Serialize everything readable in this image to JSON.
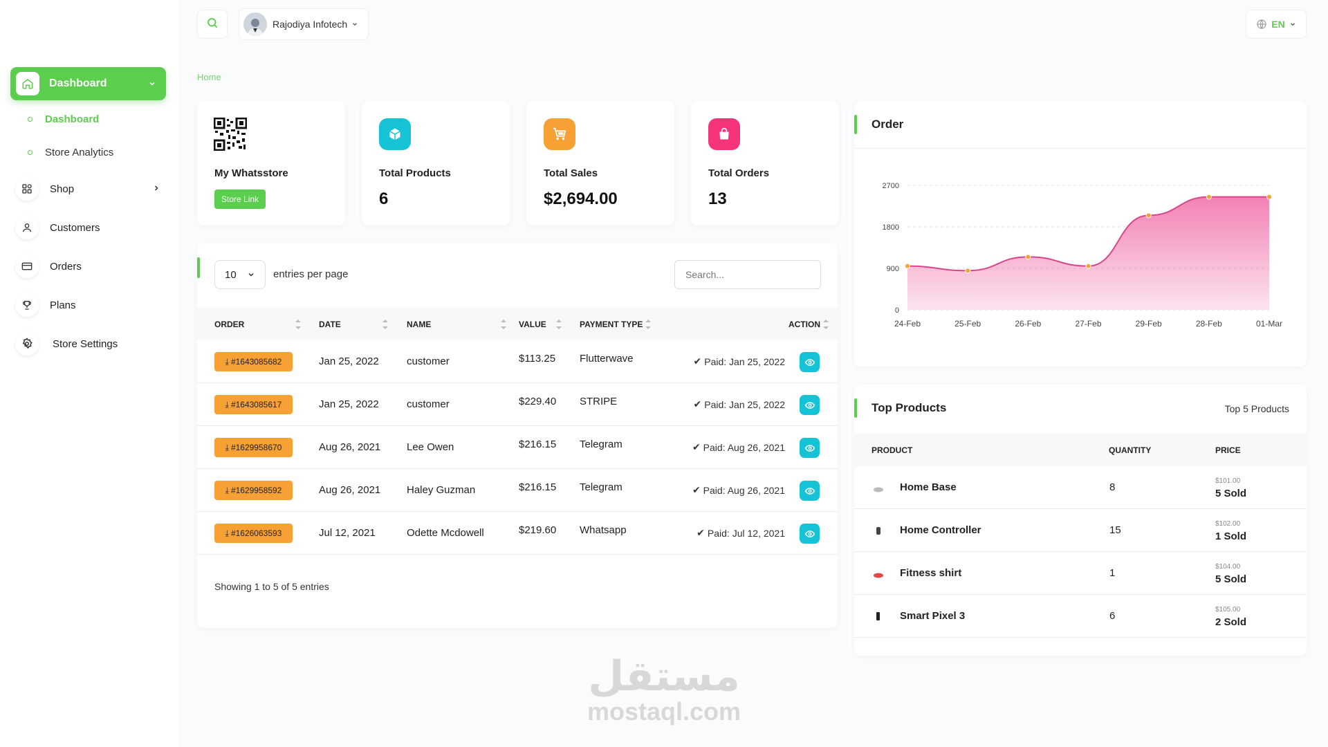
{
  "sidebar": {
    "active": {
      "label": "Dashboard",
      "icon": "home-icon"
    },
    "subitems": [
      {
        "label": "Dashboard",
        "active": true
      },
      {
        "label": "Store Analytics",
        "active": false
      }
    ],
    "items": [
      {
        "label": "Shop",
        "icon": "grid-icon"
      },
      {
        "label": "Customers",
        "icon": "user-icon"
      },
      {
        "label": "Orders",
        "icon": "card-icon"
      },
      {
        "label": "Plans",
        "icon": "trophy-icon"
      },
      {
        "label": "Store Settings",
        "icon": "gear-icon"
      }
    ]
  },
  "header": {
    "user_name": "Rajodiya Infotech",
    "language": "EN"
  },
  "breadcrumb": "Home",
  "stats": [
    {
      "title": "My Whatsstore",
      "button": "Store Link",
      "icon": "qr-code-icon"
    },
    {
      "title": "Total Products",
      "value": "6",
      "icon": "box-icon",
      "color": "#16c3d6"
    },
    {
      "title": "Total Sales",
      "value": "$2,694.00",
      "icon": "cart-icon",
      "color": "#f7a033"
    },
    {
      "title": "Total Orders",
      "value": "13",
      "icon": "bag-icon",
      "color": "#f5347b"
    }
  ],
  "orders_table": {
    "entries_value": "10",
    "entries_label": "entries per page",
    "search_placeholder": "Search...",
    "columns": [
      "ORDER",
      "DATE",
      "NAME",
      "VALUE",
      "PAYMENT TYPE",
      "ACTION"
    ],
    "rows": [
      {
        "order": "#1643085682",
        "date": "Jan 25, 2022",
        "name": "customer",
        "value": "$113.25",
        "payment": "Flutterwave",
        "status": "Paid: Jan 25, 2022"
      },
      {
        "order": "#1643085617",
        "date": "Jan 25, 2022",
        "name": "customer",
        "value": "$229.40",
        "payment": "STRIPE",
        "status": "Paid: Jan 25, 2022"
      },
      {
        "order": "#1629958670",
        "date": "Aug 26, 2021",
        "name": "Lee Owen",
        "value": "$216.15",
        "payment": "Telegram",
        "status": "Paid: Aug 26, 2021"
      },
      {
        "order": "#1629958592",
        "date": "Aug 26, 2021",
        "name": "Haley Guzman",
        "value": "$216.15",
        "payment": "Telegram",
        "status": "Paid: Aug 26, 2021"
      },
      {
        "order": "#1626063593",
        "date": "Jul 12, 2021",
        "name": "Odette Mcdowell",
        "value": "$219.60",
        "payment": "Whatsapp",
        "status": "Paid: Jul 12, 2021"
      }
    ],
    "showing": "Showing 1 to 5 of 5 entries"
  },
  "order_chart": {
    "title": "Order",
    "chart_data": {
      "type": "area",
      "categories": [
        "24-Feb",
        "25-Feb",
        "26-Feb",
        "27-Feb",
        "29-Feb",
        "28-Feb",
        "01-Mar"
      ],
      "values": [
        950,
        850,
        1150,
        950,
        2050,
        2450,
        2450
      ],
      "y_ticks": [
        "2700",
        "1800",
        "900",
        "0"
      ],
      "ylim": [
        0,
        2700
      ],
      "grid": true,
      "color": "#f06ba8"
    }
  },
  "top_products": {
    "title": "Top Products",
    "subtitle": "Top 5 Products",
    "columns": [
      "PRODUCT",
      "QUANTITY",
      "PRICE"
    ],
    "rows": [
      {
        "name": "Home Base",
        "quantity": "8",
        "price": "$101.00",
        "sold": "5 Sold"
      },
      {
        "name": "Home Controller",
        "quantity": "15",
        "price": "$102.00",
        "sold": "1 Sold"
      },
      {
        "name": "Fitness shirt",
        "quantity": "1",
        "price": "$104.00",
        "sold": "5 Sold"
      },
      {
        "name": "Smart Pixel 3",
        "quantity": "6",
        "price": "$105.00",
        "sold": "2 Sold"
      }
    ]
  },
  "watermark": {
    "arabic": "مستقل",
    "latin": "mostaql.com"
  }
}
